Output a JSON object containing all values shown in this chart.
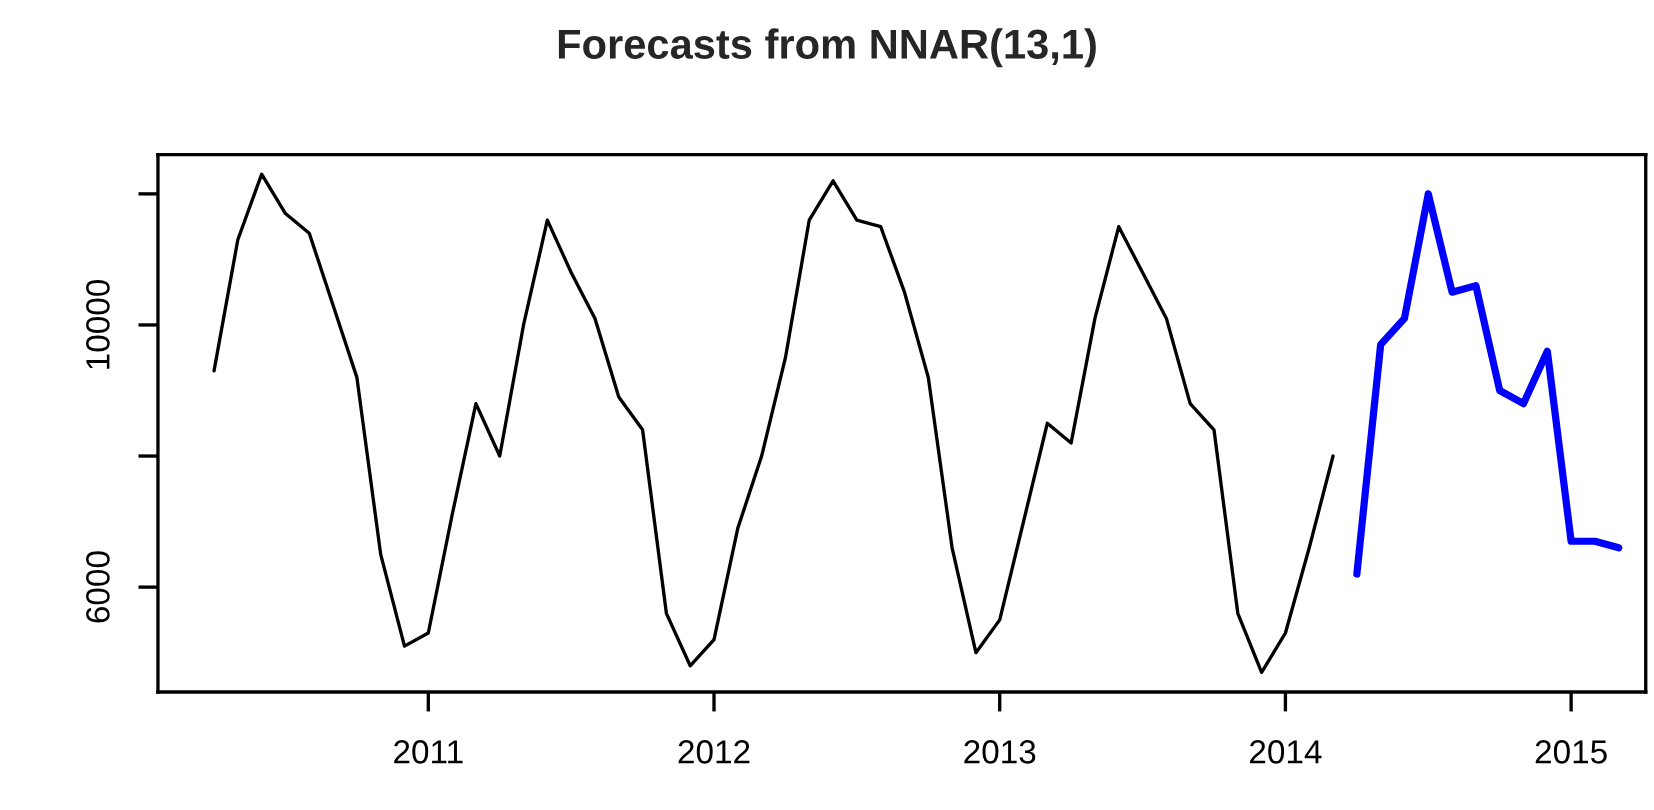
{
  "chart_data": {
    "type": "line",
    "title": "Forecasts from NNAR(13,1)",
    "series": [
      {
        "color": "#000000",
        "x": [
          "2010-04",
          "2010-05",
          "2010-06",
          "2010-07",
          "2010-08",
          "2010-09",
          "2010-10",
          "2010-11",
          "2010-12",
          "2011-01",
          "2011-02",
          "2011-03",
          "2011-04",
          "2011-05",
          "2011-06",
          "2011-07",
          "2011-08",
          "2011-09",
          "2011-10",
          "2011-11",
          "2011-12",
          "2012-01",
          "2012-02",
          "2012-03",
          "2012-04",
          "2012-05",
          "2012-06",
          "2012-07",
          "2012-08",
          "2012-09",
          "2012-10",
          "2012-11",
          "2012-12",
          "2013-01",
          "2013-02",
          "2013-03",
          "2013-04",
          "2013-05",
          "2013-06",
          "2013-07",
          "2013-08",
          "2013-09",
          "2013-10",
          "2013-11",
          "2013-12",
          "2014-01",
          "2014-02",
          "2014-03"
        ],
        "values": [
          9300,
          11300,
          12300,
          11700,
          11400,
          10300,
          9200,
          6500,
          5100,
          5300,
          7100,
          8800,
          8000,
          10000,
          11600,
          10800,
          10100,
          8900,
          8400,
          5600,
          4800,
          5200,
          6900,
          8000,
          9500,
          11600,
          12200,
          11600,
          11500,
          10500,
          9200,
          6600,
          5000,
          5500,
          7000,
          8500,
          8200,
          10100,
          11500,
          10800,
          10100,
          8800,
          8400,
          5600,
          4700,
          5300,
          6600,
          8000
        ]
      },
      {
        "color": "#0000ff",
        "x": [
          "2014-04",
          "2014-05",
          "2014-06",
          "2014-07",
          "2014-08",
          "2014-09",
          "2014-10",
          "2014-11",
          "2014-12",
          "2015-01",
          "2015-02",
          "2015-03"
        ],
        "values": [
          6200,
          9700,
          10100,
          12000,
          10500,
          10600,
          9000,
          8800,
          9600,
          6700,
          6700,
          6600
        ]
      }
    ],
    "xlim": [
      "2010-01-21",
      "2015-04-05"
    ],
    "xticks": [
      {
        "value": "2011-01",
        "label": "2011"
      },
      {
        "value": "2012-01",
        "label": "2012"
      },
      {
        "value": "2013-01",
        "label": "2013"
      },
      {
        "value": "2014-01",
        "label": "2014"
      },
      {
        "value": "2015-01",
        "label": "2015"
      }
    ],
    "ylim": [
      4400,
      12600
    ],
    "yticks": [
      6000,
      {
        "value": 8000,
        "label": null
      },
      10000,
      {
        "value": 12000,
        "label": null
      }
    ],
    "grid": false,
    "marker": "none",
    "line_style": "solid"
  }
}
